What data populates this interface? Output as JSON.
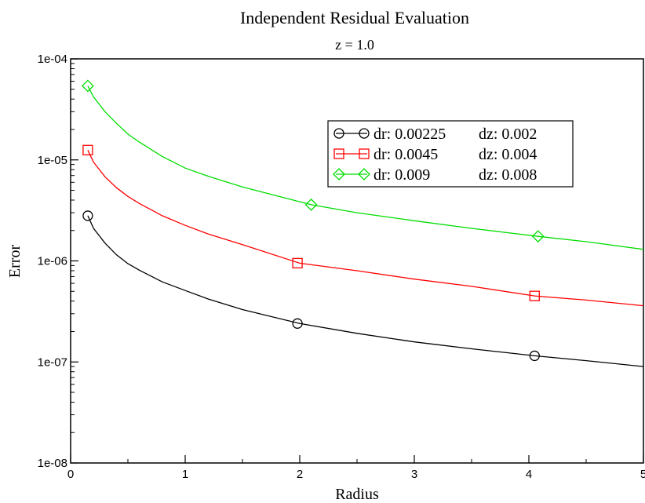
{
  "chart_data": {
    "type": "line",
    "title": "Independent Residual Evaluation",
    "subtitle": "z = 1.0",
    "xlabel": "Radius",
    "ylabel": "Error",
    "xlim": [
      0,
      5
    ],
    "ylim": [
      1e-08,
      0.0001
    ],
    "yscale": "log",
    "x_ticks": [
      0,
      1,
      2,
      3,
      4,
      5
    ],
    "x_tick_labels": [
      "0",
      "1",
      "2",
      "3",
      "4",
      "5"
    ],
    "y_ticks": [
      1e-08,
      1e-07,
      1e-06,
      1e-05,
      0.0001
    ],
    "y_tick_labels": [
      "1e-08",
      "1e-07",
      "1e-06",
      "1e-05",
      "1e-04"
    ],
    "grid": false,
    "legend_position": "top-right",
    "series": [
      {
        "name": "dr: 0.00225  dz: 0.002",
        "dr_label": "dr: 0.00225",
        "dz_label": "dz: 0.002",
        "color": "#000000",
        "marker": "circle",
        "x": [
          0.15,
          0.2,
          0.3,
          0.4,
          0.5,
          0.6,
          0.8,
          1.0,
          1.2,
          1.5,
          2.0,
          2.5,
          3.0,
          3.5,
          4.05,
          4.5,
          5.0
        ],
        "y": [
          2.8e-06,
          2.1e-06,
          1.5e-06,
          1.15e-06,
          9.4e-07,
          8.1e-07,
          6.2e-07,
          5.1e-07,
          4.2e-07,
          3.3e-07,
          2.4e-07,
          1.92e-07,
          1.58e-07,
          1.35e-07,
          1.15e-07,
          1.03e-07,
          9e-08
        ],
        "marker_x": [
          0.15,
          1.98,
          4.05
        ],
        "marker_y": [
          2.8e-06,
          2.4e-07,
          1.15e-07
        ]
      },
      {
        "name": "dr: 0.0045    dz: 0.004",
        "dr_label": "dr: 0.0045",
        "dz_label": "dz: 0.004",
        "color": "#ff0000",
        "marker": "square",
        "x": [
          0.15,
          0.2,
          0.3,
          0.4,
          0.5,
          0.6,
          0.8,
          1.0,
          1.2,
          1.5,
          2.0,
          2.5,
          3.0,
          3.5,
          4.05,
          4.5,
          5.0
        ],
        "y": [
          1.25e-05,
          9.5e-06,
          6.8e-06,
          5.3e-06,
          4.35e-06,
          3.7e-06,
          2.8e-06,
          2.25e-06,
          1.85e-06,
          1.45e-06,
          9.5e-07,
          8e-07,
          6.6e-07,
          5.6e-07,
          4.5e-07,
          4.1e-07,
          3.6e-07
        ],
        "marker_x": [
          0.15,
          1.98,
          4.05
        ],
        "marker_y": [
          1.25e-05,
          9.5e-07,
          4.5e-07
        ]
      },
      {
        "name": "dr: 0.009      dz: 0.008",
        "dr_label": "dr: 0.009",
        "dz_label": "dz: 0.008",
        "color": "#00dd00",
        "marker": "diamond",
        "x": [
          0.15,
          0.2,
          0.3,
          0.4,
          0.5,
          0.6,
          0.8,
          1.0,
          1.2,
          1.5,
          2.1,
          2.5,
          3.0,
          3.5,
          4.08,
          4.5,
          5.0
        ],
        "y": [
          5.4e-05,
          4.2e-05,
          3e-05,
          2.3e-05,
          1.8e-05,
          1.5e-05,
          1.08e-05,
          8.3e-06,
          6.9e-06,
          5.4e-06,
          3.6e-06,
          3e-06,
          2.5e-06,
          2.1e-06,
          1.75e-06,
          1.55e-06,
          1.3e-06
        ],
        "marker_x": [
          0.15,
          2.1,
          4.08
        ],
        "marker_y": [
          5.4e-05,
          3.6e-06,
          1.75e-06
        ]
      }
    ]
  }
}
